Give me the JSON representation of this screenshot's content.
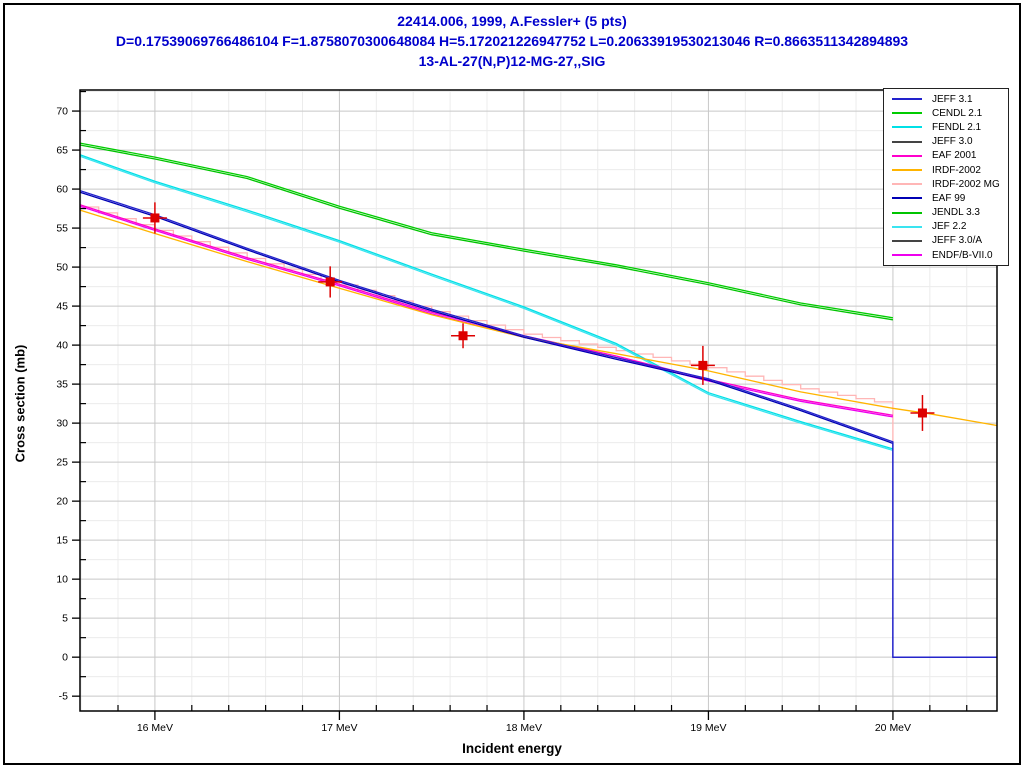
{
  "header": {
    "line1": "22414.006, 1999, A.Fessler+ (5 pts)",
    "line2": "D=0.17539069766486104 F=1.8758070300648084 H=5.172021226947752 L=0.20633919530213046 R=0.8663511342894893",
    "line3": "13-AL-27(N,P)12-MG-27,,SIG",
    "title_color": "#0000cc"
  },
  "chart_data": {
    "type": "line",
    "title": "22414.006, 1999, A.Fessler+ (5 pts)",
    "subtitle": "D=0.17539069766486104 F=1.8758070300648084 H=5.172021226947752 L=0.20633919530213046 R=0.8663511342894893",
    "reaction": "13-AL-27(N,P)12-MG-27,,SIG",
    "xlabel": "Incident energy",
    "ylabel": "Cross section (mb)",
    "x_unit": "MeV",
    "xlim": [
      15.594,
      20.564
    ],
    "ylim": [
      -6.9,
      72.7
    ],
    "x_major_ticks": [
      16,
      17,
      18,
      19,
      20
    ],
    "x_tick_labels": [
      "16 MeV",
      "17 MeV",
      "18 MeV",
      "19 MeV",
      "20 MeV"
    ],
    "x_minor_step": 0.2,
    "y_major_ticks": [
      -5,
      0,
      5,
      10,
      15,
      20,
      25,
      30,
      35,
      40,
      45,
      50,
      55,
      60,
      65,
      70
    ],
    "y_minor_step": 2.5,
    "grid": true,
    "grid_major_color": "#c8c8c8",
    "grid_minor_color": "#ececec",
    "frame_color": "#000000",
    "legend_position": "top-right",
    "series": [
      {
        "name": "JEFF 3.1",
        "color": "#2222cc",
        "style": "line",
        "points": [
          [
            15.594,
            59.8
          ],
          [
            16,
            56.7
          ],
          [
            16.5,
            52.4
          ],
          [
            17,
            48.3
          ],
          [
            17.5,
            44.6
          ],
          [
            18,
            41.2
          ],
          [
            18.5,
            38.4
          ],
          [
            19,
            35.7
          ],
          [
            19.5,
            31.8
          ],
          [
            20,
            27.6
          ],
          [
            20,
            0
          ],
          [
            20.564,
            0
          ]
        ]
      },
      {
        "name": "CENDL 2.1",
        "color": "#00cc00",
        "style": "line",
        "points": [
          [
            15.594,
            65.9
          ],
          [
            16,
            64.1
          ],
          [
            16.5,
            61.6
          ],
          [
            17,
            57.8
          ],
          [
            17.5,
            54.4
          ],
          [
            18,
            52.3
          ],
          [
            18.5,
            50.3
          ],
          [
            19,
            48.0
          ],
          [
            19.5,
            45.4
          ],
          [
            20,
            43.5
          ]
        ]
      },
      {
        "name": "FENDL 2.1",
        "color": "#00e0e6",
        "style": "line",
        "points": [
          [
            15.594,
            64.4
          ],
          [
            16,
            61.0
          ],
          [
            16.5,
            57.3
          ],
          [
            17,
            53.4
          ],
          [
            17.5,
            49.1
          ],
          [
            18,
            44.9
          ],
          [
            18.5,
            40.2
          ],
          [
            19,
            33.9
          ],
          [
            19.5,
            30.2
          ],
          [
            20,
            26.7
          ]
        ]
      },
      {
        "name": "JEFF 3.0",
        "color": "#444444",
        "style": "line",
        "points": []
      },
      {
        "name": "EAF 2001",
        "color": "#ff00cc",
        "style": "line",
        "points": [
          [
            15.594,
            58.0
          ],
          [
            16,
            54.9
          ],
          [
            16.5,
            51.2
          ],
          [
            17,
            47.8
          ],
          [
            17.5,
            44.2
          ],
          [
            18,
            41.2
          ],
          [
            18.5,
            38.6
          ],
          [
            19,
            35.6
          ],
          [
            19.5,
            33.0
          ],
          [
            20,
            31.0
          ]
        ]
      },
      {
        "name": "IRDF-2002",
        "color": "#ffb400",
        "style": "line",
        "points": [
          [
            15.594,
            57.3
          ],
          [
            16,
            54.3
          ],
          [
            16.5,
            50.7
          ],
          [
            17,
            47.3
          ],
          [
            17.5,
            43.9
          ],
          [
            18,
            41.0
          ],
          [
            18.5,
            38.9
          ],
          [
            19,
            36.7
          ],
          [
            19.5,
            34.0
          ],
          [
            20,
            31.9
          ],
          [
            20.2,
            31.2
          ],
          [
            20.564,
            29.7
          ]
        ]
      },
      {
        "name": "IRDF-2002 MG",
        "color": "#ffb6b6",
        "style": "step",
        "points": [
          [
            15.594,
            57.7
          ],
          [
            16,
            54.7
          ],
          [
            16.5,
            51.1
          ],
          [
            17,
            47.7
          ],
          [
            17.5,
            44.3
          ],
          [
            18,
            41.4
          ],
          [
            18.5,
            39.3
          ],
          [
            19,
            37.1
          ],
          [
            19.5,
            34.4
          ],
          [
            20,
            32.3
          ],
          [
            20,
            27.0
          ]
        ]
      },
      {
        "name": "EAF 99",
        "color": "#0000b4",
        "style": "line",
        "points": [
          [
            15.594,
            59.6
          ],
          [
            16,
            56.5
          ],
          [
            16.5,
            52.2
          ],
          [
            17,
            48.1
          ],
          [
            17.5,
            44.4
          ],
          [
            18,
            41.0
          ],
          [
            18.5,
            38.2
          ],
          [
            19,
            35.5
          ],
          [
            19.5,
            31.6
          ],
          [
            20,
            27.4
          ],
          [
            20,
            0
          ],
          [
            20.564,
            0
          ]
        ]
      },
      {
        "name": "JENDL 3.3",
        "color": "#00c400",
        "style": "line",
        "points": [
          [
            15.594,
            65.65
          ],
          [
            16,
            63.85
          ],
          [
            16.5,
            61.35
          ],
          [
            17,
            57.55
          ],
          [
            17.5,
            54.15
          ],
          [
            18,
            52.05
          ],
          [
            18.5,
            50.05
          ],
          [
            19,
            47.75
          ],
          [
            19.5,
            45.15
          ],
          [
            20,
            43.25
          ]
        ]
      },
      {
        "name": "JEF 2.2",
        "color": "#3ae4f0",
        "style": "line",
        "points": [
          [
            15.594,
            64.2
          ],
          [
            16,
            60.8
          ],
          [
            16.5,
            57.1
          ],
          [
            17,
            53.2
          ],
          [
            17.5,
            48.9
          ],
          [
            18,
            44.7
          ],
          [
            18.5,
            40.0
          ],
          [
            19,
            33.7
          ],
          [
            19.5,
            30.0
          ],
          [
            20,
            26.5
          ]
        ]
      },
      {
        "name": "JEFF 3.0/A",
        "color": "#444444",
        "style": "line",
        "points": []
      },
      {
        "name": "ENDF/B-VII.0",
        "color": "#ee00ee",
        "style": "line",
        "points": [
          [
            15.594,
            57.8
          ],
          [
            16,
            54.7
          ],
          [
            16.5,
            51.0
          ],
          [
            17,
            47.6
          ],
          [
            17.5,
            44.0
          ],
          [
            18,
            41.0
          ],
          [
            18.5,
            38.4
          ],
          [
            19,
            35.4
          ],
          [
            19.5,
            32.8
          ],
          [
            20,
            30.8
          ]
        ]
      }
    ],
    "draw_order": [
      "IRDF-2002 MG",
      "JEFF 3.0",
      "JEFF 3.0/A",
      "JEF 2.2",
      "FENDL 2.1",
      "JENDL 3.3",
      "CENDL 2.1",
      "ENDF/B-VII.0",
      "EAF 2001",
      "IRDF-2002",
      "EAF 99",
      "JEFF 3.1"
    ],
    "experimental": {
      "label": "22414.006, 1999, A.Fessler+ (5 pts)",
      "marker": "square",
      "color": "#dd0000",
      "points": [
        {
          "x": 16.0,
          "y": 56.3,
          "yerr": 2.0,
          "xerr": 0.065
        },
        {
          "x": 16.95,
          "y": 48.1,
          "yerr": 2.0,
          "xerr": 0.065
        },
        {
          "x": 17.67,
          "y": 41.2,
          "yerr": 1.6,
          "xerr": 0.065
        },
        {
          "x": 18.97,
          "y": 37.4,
          "yerr": 2.5,
          "xerr": 0.065
        },
        {
          "x": 20.16,
          "y": 31.3,
          "yerr": 2.3,
          "xerr": 0.065
        }
      ]
    },
    "legend": [
      {
        "label": "JEFF 3.1",
        "color": "#2222cc"
      },
      {
        "label": "CENDL 2.1",
        "color": "#00cc00"
      },
      {
        "label": "FENDL 2.1",
        "color": "#00e0e6"
      },
      {
        "label": "JEFF 3.0",
        "color": "#444444"
      },
      {
        "label": "EAF 2001",
        "color": "#ff00cc"
      },
      {
        "label": "IRDF-2002",
        "color": "#ffb400"
      },
      {
        "label": "IRDF-2002 MG",
        "color": "#ffb6b6"
      },
      {
        "label": "EAF 99",
        "color": "#0000b4"
      },
      {
        "label": "JENDL 3.3",
        "color": "#00c400"
      },
      {
        "label": "JEF 2.2",
        "color": "#3ae4f0"
      },
      {
        "label": "JEFF 3.0/A",
        "color": "#444444"
      },
      {
        "label": "ENDF/B-VII.0",
        "color": "#ee00ee"
      }
    ]
  }
}
